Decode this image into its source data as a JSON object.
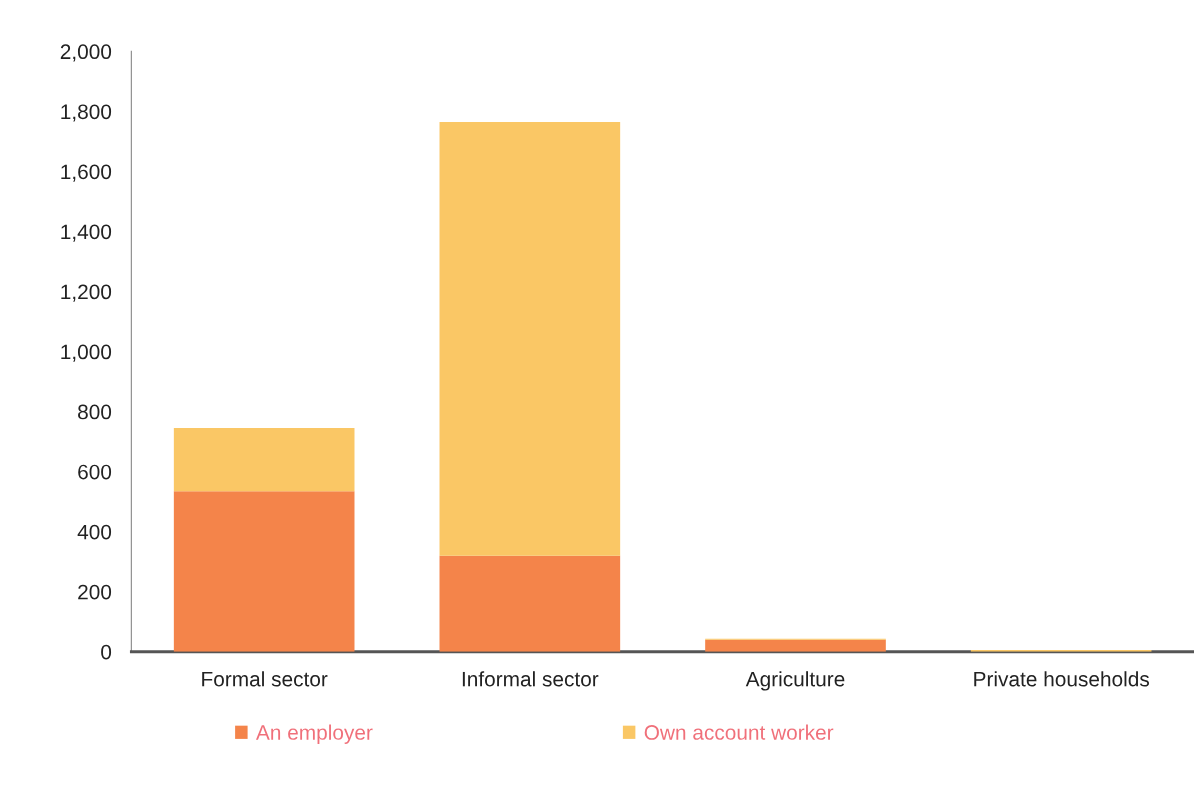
{
  "chart_data": {
    "type": "bar",
    "stacked": true,
    "categories": [
      "Formal sector",
      "Informal sector",
      "Agriculture",
      "Private households"
    ],
    "series": [
      {
        "name": "An employer",
        "color": "#f4844a",
        "values": [
          535,
          320,
          40,
          0
        ]
      },
      {
        "name": "Own account worker",
        "color": "#fac765",
        "values": [
          210,
          1445,
          3,
          6
        ]
      }
    ],
    "ylim": [
      0,
      2000
    ],
    "yticks": [
      0,
      {
        "value": 200,
        "label": "200"
      },
      {
        "value": 400,
        "label": "400"
      },
      {
        "value": 600,
        "label": "600"
      },
      {
        "value": 800,
        "label": "800"
      },
      {
        "value": 1000,
        "label": "1,000"
      },
      {
        "value": 1200,
        "label": "1,200"
      },
      {
        "value": 1400,
        "label": "1,400"
      },
      {
        "value": 1600,
        "label": "1,600"
      },
      {
        "value": 1800,
        "label": "1,800"
      },
      {
        "value": 2000,
        "label": "2,000"
      }
    ],
    "grid": false,
    "legend": "bottom left"
  }
}
